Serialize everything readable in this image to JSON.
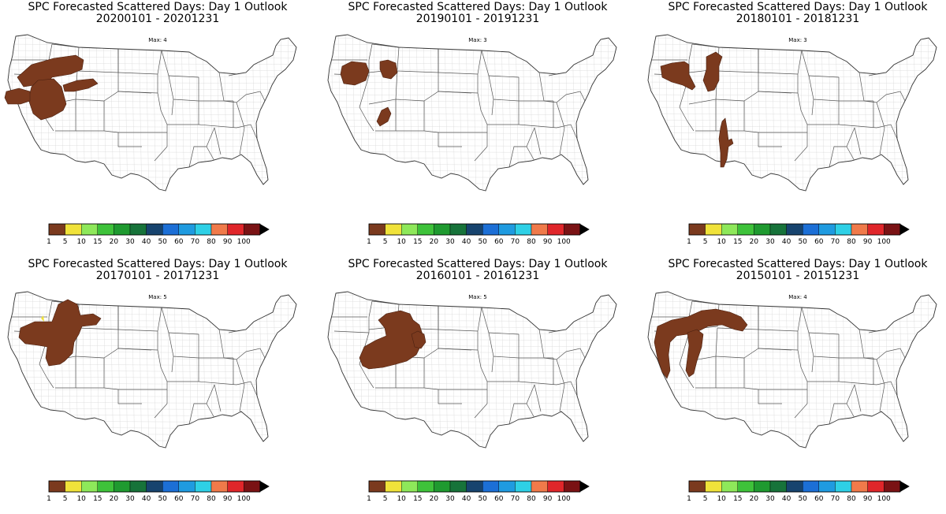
{
  "panels": [
    {
      "title": "SPC Forecasted Scattered Days: Day 1 Outlook",
      "period": "20200101 - 20201231",
      "max_label": "Max: 4"
    },
    {
      "title": "SPC Forecasted Scattered Days: Day 1 Outlook",
      "period": "20190101 - 20191231",
      "max_label": "Max: 3"
    },
    {
      "title": "SPC Forecasted Scattered Days: Day 1 Outlook",
      "period": "20180101 - 20181231",
      "max_label": "Max: 3"
    },
    {
      "title": "SPC Forecasted Scattered Days: Day 1 Outlook",
      "period": "20170101 - 20171231",
      "max_label": "Max: 5"
    },
    {
      "title": "SPC Forecasted Scattered Days: Day 1 Outlook",
      "period": "20160101 - 20161231",
      "max_label": "Max: 5"
    },
    {
      "title": "SPC Forecasted Scattered Days: Day 1 Outlook",
      "period": "20150101 - 20151231",
      "max_label": "Max: 4"
    }
  ],
  "colorbar": {
    "ticks": [
      "1",
      "5",
      "10",
      "15",
      "20",
      "30",
      "40",
      "50",
      "60",
      "70",
      "80",
      "90",
      "100"
    ],
    "colors": [
      "#7b3a1e",
      "#f0e23a",
      "#8ee85a",
      "#3ec23a",
      "#1f9a30",
      "#17733a",
      "#17436e",
      "#1c6fd6",
      "#1f9be0",
      "#2ed0e6",
      "#f07a4a",
      "#e0262a",
      "#7a1214"
    ],
    "overflow_arrow_color": "#000000"
  },
  "style": {
    "shade_color": "#7b3a1e",
    "shade_outline": "#4a2010",
    "highlight_color": "#f0e23a"
  }
}
